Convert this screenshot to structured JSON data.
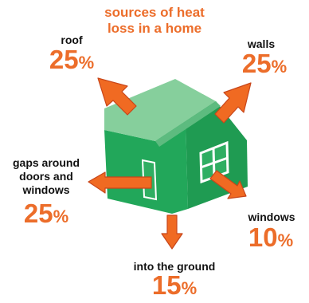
{
  "title": {
    "line1": "sources of heat",
    "line2": "loss in a home"
  },
  "colors": {
    "accent": "#ec6d2a",
    "arrow_fill": "#f06a22",
    "arrow_edge": "#c8461a",
    "wall_front": "#22a75a",
    "wall_side": "#1f9b52",
    "roof": "#86cf9c",
    "roof_dark": "#5dbb7f",
    "window_frame": "#ffffff",
    "window_glass": "#2fae62"
  },
  "losses": {
    "roof": {
      "label_lines": [
        "roof"
      ],
      "value": 25,
      "unit": "%"
    },
    "walls": {
      "label_lines": [
        "walls"
      ],
      "value": 25,
      "unit": "%"
    },
    "gaps": {
      "label_lines": [
        "gaps around",
        "doors and",
        "windows"
      ],
      "value": 25,
      "unit": "%"
    },
    "windows": {
      "label_lines": [
        "windows"
      ],
      "value": 10,
      "unit": "%"
    },
    "ground": {
      "label_lines": [
        "into the ground"
      ],
      "value": 15,
      "unit": "%"
    }
  }
}
